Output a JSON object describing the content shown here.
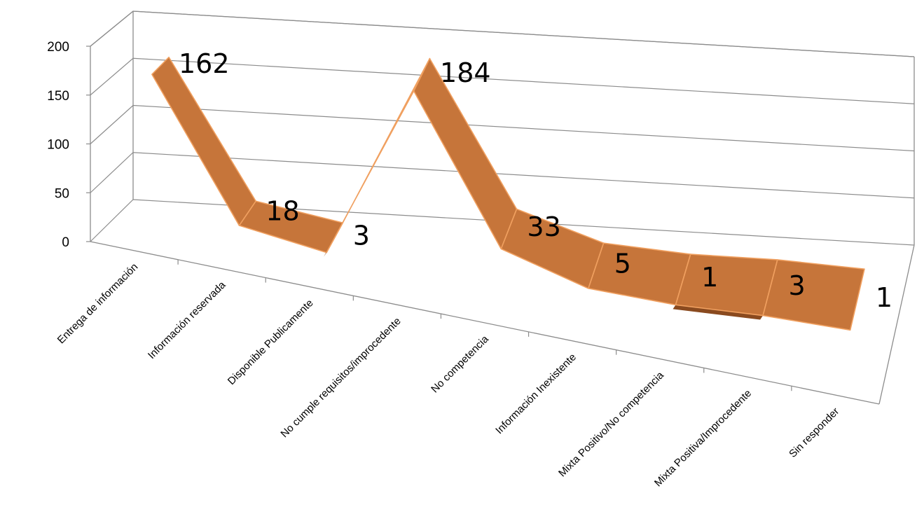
{
  "chart_data": {
    "type": "line",
    "title": "",
    "xlabel": "",
    "ylabel": "",
    "categories": [
      "Entrega de información",
      "Información reservada",
      "Disponible Publicamente",
      "No cumple requisitos/improcedente",
      "No competencia",
      "Información Inexistente",
      "Mixta Positivo/No competencia",
      "Mixta Positiva/Improcedente",
      "Sin responder"
    ],
    "series": [
      {
        "values": [
          162,
          18,
          3,
          184,
          33,
          5,
          1,
          3,
          1
        ]
      }
    ],
    "value_labels": [
      "162",
      "18",
      "3",
      "184",
      "33",
      "5",
      "1",
      "3",
      "1"
    ],
    "ylim": [
      0,
      200
    ],
    "yticks": [
      "0",
      "50",
      "100",
      "150",
      "200"
    ],
    "grid": true,
    "style": "3d-ribbon",
    "colors": {
      "ribbon_top": "#C6753A",
      "ribbon_front": "#8A4A1F",
      "ribbon_edge": "#F0A060",
      "grid": "#8C8C8C"
    }
  }
}
